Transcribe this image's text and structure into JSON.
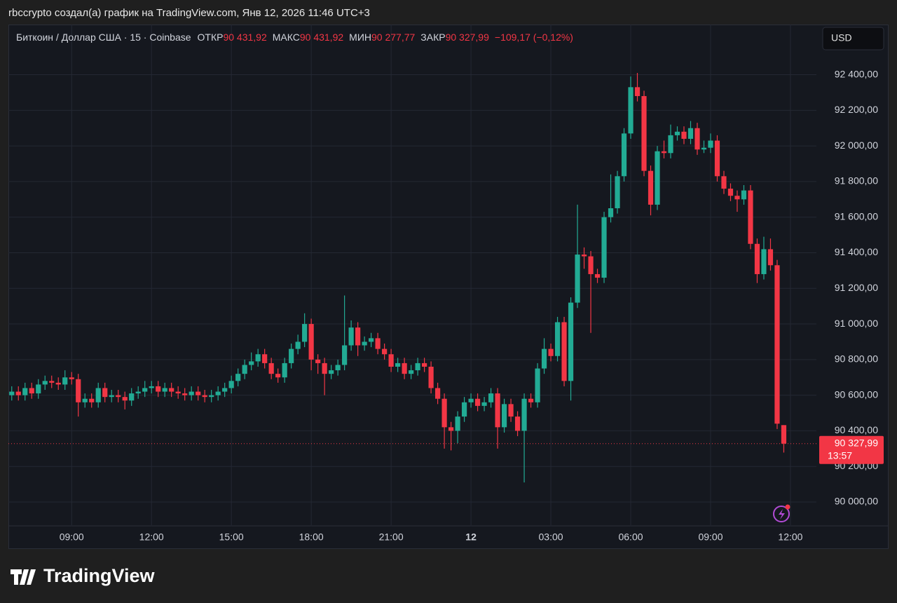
{
  "header": {
    "caption": "rbccrypto создал(а) график на TradingView.com, Янв 12, 2026 11:46 UTC+3",
    "currency": "USD"
  },
  "footer": {
    "logo": "TradingView"
  },
  "chart_data": {
    "type": "candlestick",
    "symbol": "Биткоин / Доллар США · 15 · Coinbase",
    "ohlc_legend": [
      {
        "name": "ОТКР",
        "value": 90431.92,
        "label": "90 431,92"
      },
      {
        "name": "МАКС",
        "value": 90431.92,
        "label": "90 431,92"
      },
      {
        "name": "МИН",
        "value": 90277.77,
        "label": "90 277,77"
      },
      {
        "name": "ЗАКР",
        "value": 90327.99,
        "label": "90 327,99"
      }
    ],
    "change_label": "−109,17 (−0,12%)",
    "last_price": {
      "value": 90327.99,
      "label": "90 327,99"
    },
    "countdown": "13:57",
    "up_color": "#22ab94",
    "down_color": "#f23645",
    "grid": true,
    "xlim": [
      -0.5,
      120.9
    ],
    "xticks": [
      {
        "value": 9,
        "label": "09:00"
      },
      {
        "value": 21,
        "label": "12:00"
      },
      {
        "value": 33,
        "label": "15:00"
      },
      {
        "value": 45,
        "label": "18:00"
      },
      {
        "value": 57,
        "label": "21:00"
      },
      {
        "value": 69,
        "label": "12"
      },
      {
        "value": 81,
        "label": "03:00"
      },
      {
        "value": 93,
        "label": "06:00"
      },
      {
        "value": 105,
        "label": "09:00"
      },
      {
        "value": 117,
        "label": "12:00"
      }
    ],
    "ylim": [
      89870,
      92670
    ],
    "yticks": [
      {
        "value": 90000,
        "label": "90 000,00"
      },
      {
        "value": 90200,
        "label": "90 200,00"
      },
      {
        "value": 90400,
        "label": "90 400,00"
      },
      {
        "value": 90600,
        "label": "90 600,00"
      },
      {
        "value": 90800,
        "label": "90 800,00"
      },
      {
        "value": 91000,
        "label": "91 000,00"
      },
      {
        "value": 91200,
        "label": "91 200,00"
      },
      {
        "value": 91400,
        "label": "91 400,00"
      },
      {
        "value": 91600,
        "label": "91 600,00"
      },
      {
        "value": 91800,
        "label": "91 800,00"
      },
      {
        "value": 92000,
        "label": "92 000,00"
      },
      {
        "value": 92200,
        "label": "92 200,00"
      },
      {
        "value": 92400,
        "label": "92 400,00"
      }
    ],
    "open": [
      90600,
      90620,
      90600,
      90640,
      90610,
      90660,
      90680,
      90670,
      90660,
      90700,
      90690,
      90560,
      90580,
      90560,
      90640,
      90590,
      90600,
      90590,
      90570,
      90610,
      90620,
      90640,
      90650,
      90620,
      90640,
      90620,
      90610,
      90600,
      90620,
      90600,
      90590,
      90600,
      90620,
      90640,
      90680,
      90720,
      90770,
      90790,
      90830,
      90780,
      90720,
      90700,
      90780,
      90860,
      90900,
      91000,
      90800,
      90780,
      90720,
      90740,
      90770,
      90880,
      90980,
      90880,
      90900,
      90920,
      90860,
      90830,
      90760,
      90780,
      90720,
      90740,
      90780,
      90760,
      90640,
      90580,
      90420,
      90400,
      90480,
      90560,
      90580,
      90540,
      90560,
      90610,
      90420,
      90550,
      90480,
      90400,
      90580,
      90560,
      90750,
      90860,
      90820,
      91010,
      90680,
      91120,
      91390,
      91380,
      91280,
      91260,
      91600,
      91650,
      91830,
      92070,
      92330,
      92280,
      91860,
      91670,
      91970,
      91960,
      92060,
      92080,
      92040,
      92100,
      91980,
      91990,
      92030,
      91830,
      91760,
      91720,
      91700,
      91750,
      91450,
      91280,
      91420,
      91330,
      90431.92
    ],
    "high": [
      90650,
      90650,
      90670,
      90670,
      90690,
      90710,
      90710,
      90700,
      90740,
      90730,
      90720,
      90610,
      90610,
      90670,
      90670,
      90630,
      90630,
      90620,
      90640,
      90650,
      90680,
      90680,
      90680,
      90670,
      90670,
      90650,
      90640,
      90650,
      90650,
      90630,
      90630,
      90650,
      90670,
      90710,
      90750,
      90800,
      90840,
      90860,
      90860,
      90810,
      90750,
      90810,
      90890,
      90940,
      91060,
      91030,
      90830,
      90810,
      90770,
      90800,
      91160,
      91020,
      91010,
      90930,
      90950,
      90950,
      90890,
      90860,
      90810,
      90810,
      90770,
      90810,
      90810,
      90790,
      90670,
      90610,
      90450,
      90510,
      90590,
      90610,
      90610,
      90590,
      90640,
      90640,
      90580,
      90580,
      90510,
      90610,
      90610,
      90780,
      90920,
      90890,
      91040,
      91040,
      91150,
      91670,
      91430,
      91410,
      91310,
      91630,
      91840,
      91860,
      92100,
      92390,
      92410,
      92310,
      91890,
      92000,
      92030,
      92120,
      92110,
      92110,
      92140,
      92130,
      92030,
      92070,
      92060,
      91860,
      91790,
      91750,
      91780,
      91780,
      91480,
      91490,
      91480,
      91360,
      90431.92
    ],
    "low": [
      90570,
      90570,
      90570,
      90580,
      90580,
      90630,
      90640,
      90630,
      90630,
      90660,
      90480,
      90530,
      90530,
      90530,
      90560,
      90560,
      90560,
      90520,
      90540,
      90580,
      90590,
      90610,
      90590,
      90590,
      90590,
      90580,
      90570,
      90570,
      90570,
      90560,
      90560,
      90570,
      90590,
      90610,
      90650,
      90690,
      90740,
      90760,
      90750,
      90690,
      90670,
      90670,
      90750,
      90830,
      90870,
      90740,
      90720,
      90600,
      90690,
      90710,
      90740,
      90850,
      90820,
      90850,
      90870,
      90830,
      90800,
      90730,
      90730,
      90690,
      90690,
      90710,
      90730,
      90610,
      90550,
      90300,
      90290,
      90330,
      90450,
      90530,
      90510,
      90510,
      90530,
      90300,
      90390,
      90450,
      90370,
      90110,
      90530,
      90530,
      90720,
      90790,
      90790,
      90650,
      90570,
      91090,
      91310,
      90950,
      91230,
      91230,
      91570,
      91620,
      91800,
      92040,
      92250,
      91830,
      91610,
      91640,
      91930,
      91930,
      92030,
      92010,
      92010,
      91950,
      91960,
      91960,
      91800,
      91730,
      91690,
      91630,
      91670,
      91420,
      91230,
      91250,
      91300,
      90410,
      90277.77
    ],
    "close": [
      90620,
      90600,
      90640,
      90610,
      90660,
      90680,
      90670,
      90660,
      90700,
      90690,
      90560,
      90580,
      90560,
      90640,
      90590,
      90600,
      90590,
      90570,
      90610,
      90620,
      90640,
      90650,
      90620,
      90640,
      90620,
      90610,
      90600,
      90620,
      90600,
      90590,
      90600,
      90620,
      90640,
      90680,
      90720,
      90770,
      90790,
      90830,
      90780,
      90720,
      90700,
      90780,
      90860,
      90900,
      91000,
      90800,
      90780,
      90720,
      90740,
      90770,
      90880,
      90980,
      90880,
      90900,
      90920,
      90860,
      90830,
      90760,
      90780,
      90720,
      90740,
      90780,
      90760,
      90640,
      90580,
      90420,
      90400,
      90480,
      90560,
      90580,
      90540,
      90560,
      90610,
      90420,
      90550,
      90480,
      90400,
      90580,
      90560,
      90750,
      90860,
      90820,
      91010,
      90680,
      91120,
      91390,
      91380,
      91280,
      91260,
      91600,
      91650,
      91830,
      92070,
      92330,
      92280,
      91860,
      91670,
      91970,
      91960,
      92060,
      92080,
      92040,
      92100,
      91980,
      91990,
      92030,
      91830,
      91760,
      91720,
      91700,
      91750,
      91450,
      91280,
      91420,
      91330,
      90440,
      90327.99
    ]
  }
}
